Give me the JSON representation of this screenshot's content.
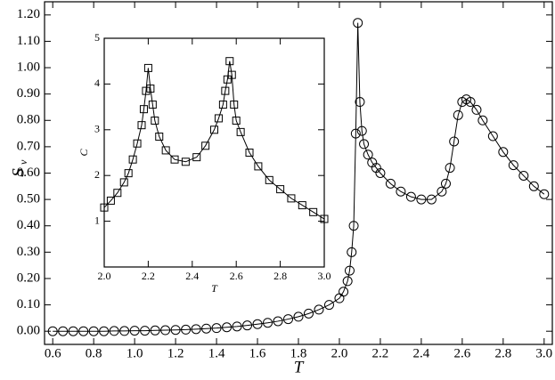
{
  "chart_data": [
    {
      "type": "line",
      "marker": "circle",
      "color": "#000000",
      "xlabel": "T",
      "ylabel": "S",
      "ylabel_sub": "v",
      "xlim": [
        0.56,
        3.04
      ],
      "ylim": [
        -0.05,
        1.25
      ],
      "xticks": [
        0.6,
        0.8,
        {
          "value": 1,
          "label": "1.0"
        },
        1.2,
        1.4,
        1.6,
        1.8,
        {
          "value": 2,
          "label": "2.0"
        },
        2.2,
        2.4,
        2.6,
        2.8,
        {
          "value": 3,
          "label": "3.0"
        }
      ],
      "yticks": [
        {
          "value": 0,
          "label": "0.00"
        },
        {
          "value": 0.1,
          "label": "0.10"
        },
        {
          "value": 0.2,
          "label": "0.20"
        },
        {
          "value": 0.3,
          "label": "0.30"
        },
        {
          "value": 0.4,
          "label": "0.40"
        },
        {
          "value": 0.5,
          "label": "0.50"
        },
        {
          "value": 0.6,
          "label": "0.60"
        },
        {
          "value": 0.7,
          "label": "0.70"
        },
        {
          "value": 0.8,
          "label": "0.80"
        },
        {
          "value": 0.9,
          "label": "0.90"
        },
        {
          "value": 1,
          "label": "1.00"
        },
        {
          "value": 1.1,
          "label": "1.10"
        },
        {
          "value": 1.2,
          "label": "1.20"
        }
      ],
      "x": [
        0.6,
        0.65,
        0.7,
        0.75,
        0.8,
        0.85,
        0.9,
        0.95,
        1.0,
        1.05,
        1.1,
        1.15,
        1.2,
        1.25,
        1.3,
        1.35,
        1.4,
        1.45,
        1.5,
        1.55,
        1.6,
        1.65,
        1.7,
        1.75,
        1.8,
        1.85,
        1.9,
        1.95,
        2.0,
        2.02,
        2.04,
        2.05,
        2.06,
        2.07,
        2.08,
        2.09,
        2.1,
        2.11,
        2.12,
        2.14,
        2.16,
        2.18,
        2.2,
        2.25,
        2.3,
        2.35,
        2.4,
        2.45,
        2.5,
        2.52,
        2.54,
        2.56,
        2.58,
        2.6,
        2.62,
        2.64,
        2.67,
        2.7,
        2.75,
        2.8,
        2.85,
        2.9,
        2.95,
        3.0
      ],
      "values": [
        0,
        0,
        0,
        0,
        0,
        0,
        0.001,
        0.001,
        0.002,
        0.002,
        0.003,
        0.004,
        0.005,
        0.006,
        0.008,
        0.01,
        0.012,
        0.015,
        0.018,
        0.022,
        0.027,
        0.032,
        0.038,
        0.046,
        0.055,
        0.067,
        0.082,
        0.1,
        0.125,
        0.15,
        0.19,
        0.23,
        0.3,
        0.4,
        0.75,
        1.17,
        0.87,
        0.76,
        0.71,
        0.67,
        0.64,
        0.62,
        0.6,
        0.56,
        0.53,
        0.51,
        0.5,
        0.5,
        0.53,
        0.56,
        0.62,
        0.72,
        0.82,
        0.87,
        0.88,
        0.87,
        0.84,
        0.8,
        0.74,
        0.68,
        0.63,
        0.59,
        0.55,
        0.52
      ]
    },
    {
      "type": "line",
      "marker": "square",
      "color": "#000000",
      "xlabel": "T",
      "ylabel": "C",
      "xlim": [
        2,
        3
      ],
      "ylim": [
        0,
        5
      ],
      "xticks": [
        {
          "value": 2,
          "label": "2.0"
        },
        2.2,
        2.4,
        2.6,
        2.8,
        {
          "value": 3,
          "label": "3.0"
        }
      ],
      "yticks": [
        1,
        2,
        3,
        4,
        5
      ],
      "x": [
        2.0,
        2.03,
        2.06,
        2.09,
        2.11,
        2.13,
        2.15,
        2.17,
        2.18,
        2.19,
        2.2,
        2.21,
        2.22,
        2.23,
        2.25,
        2.28,
        2.32,
        2.37,
        2.42,
        2.46,
        2.5,
        2.52,
        2.54,
        2.55,
        2.56,
        2.57,
        2.58,
        2.59,
        2.6,
        2.62,
        2.66,
        2.7,
        2.75,
        2.8,
        2.85,
        2.9,
        2.95,
        3.0
      ],
      "values": [
        1.3,
        1.45,
        1.62,
        1.85,
        2.05,
        2.35,
        2.7,
        3.1,
        3.45,
        3.85,
        4.35,
        3.9,
        3.55,
        3.2,
        2.85,
        2.55,
        2.35,
        2.3,
        2.4,
        2.65,
        3.0,
        3.25,
        3.55,
        3.85,
        4.1,
        4.5,
        4.2,
        3.55,
        3.2,
        2.95,
        2.5,
        2.2,
        1.9,
        1.7,
        1.5,
        1.35,
        1.2,
        1.05
      ]
    }
  ]
}
